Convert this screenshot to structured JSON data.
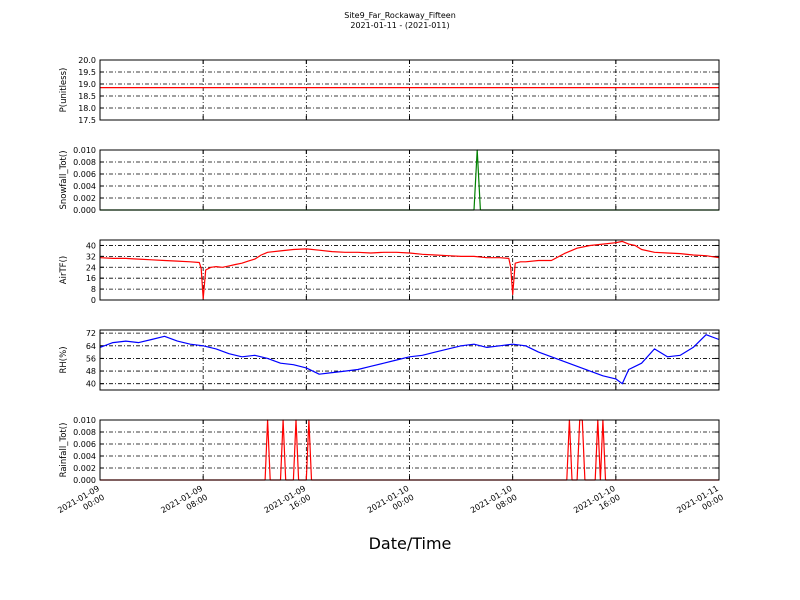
{
  "figure": {
    "title": "Site9_Far_Rockaway_Fifteen",
    "subtitle": "2021-01-11 - (2021-011)",
    "xlabel": "Date/Time"
  },
  "chart_data": [
    {
      "type": "line",
      "ylabel": "P(unitless)",
      "ylim": [
        17.5,
        20.0
      ],
      "yticks": [
        "17.5",
        "18.0",
        "18.5",
        "19.0",
        "19.5",
        "20.0"
      ],
      "color": "#ff0000",
      "grid": true,
      "series": [
        {
          "x": [
            0,
            48
          ],
          "values": [
            18.85,
            18.85
          ]
        }
      ]
    },
    {
      "type": "line",
      "ylabel": "Snowfall_Tot()",
      "ylim": [
        0,
        0.01
      ],
      "yticks": [
        "0.000",
        "0.002",
        "0.004",
        "0.006",
        "0.008",
        "0.010"
      ],
      "color": "#008000",
      "grid": true,
      "series": [
        {
          "x": [
            0,
            29.0,
            29.25,
            29.5,
            48
          ],
          "values": [
            0,
            0,
            0.01,
            0,
            0
          ]
        }
      ]
    },
    {
      "type": "line",
      "ylabel": "AirTF()",
      "ylim": [
        0,
        44
      ],
      "yticks": [
        "0",
        "8",
        "16",
        "24",
        "32",
        "40"
      ],
      "color": "#ff0000",
      "grid": true,
      "series": [
        {
          "x": [
            0,
            1,
            2,
            3,
            4,
            5,
            6,
            7,
            7.7,
            7.85,
            8.0,
            8.2,
            8.6,
            9,
            9.5,
            10,
            10.5,
            11,
            11.5,
            12,
            12.5,
            13,
            14,
            15,
            16,
            17,
            18,
            19,
            20,
            21,
            22,
            23,
            24,
            25,
            26,
            27,
            28,
            29,
            30,
            31,
            31.7,
            31.85,
            32.0,
            32.2,
            32.6,
            33,
            34,
            35,
            36,
            37,
            38,
            39,
            40,
            40.5,
            41,
            41.5,
            42,
            43,
            44,
            45,
            46,
            47,
            48
          ],
          "values": [
            31,
            30.5,
            30.5,
            30,
            29.5,
            29,
            28.5,
            28,
            27.5,
            23,
            1,
            22,
            24,
            24.5,
            24,
            25,
            26,
            27,
            28.5,
            30,
            33,
            35,
            36,
            37,
            37.5,
            36.5,
            35.5,
            35,
            35,
            34.5,
            35,
            35,
            34.5,
            33.5,
            33,
            32.5,
            32,
            32,
            31,
            31,
            30.5,
            24,
            4,
            27,
            28,
            28,
            29,
            29,
            34,
            38,
            40,
            41,
            42,
            43,
            41,
            40,
            37,
            35,
            34.5,
            34,
            33,
            32.5,
            31
          ]
        }
      ]
    },
    {
      "type": "line",
      "ylabel": "RH(%)",
      "ylim": [
        36,
        74
      ],
      "yticks": [
        "40",
        "48",
        "56",
        "64",
        "72"
      ],
      "color": "#0000ff",
      "grid": true,
      "series": [
        {
          "x": [
            0,
            1,
            2,
            3,
            4,
            5,
            6,
            7,
            8,
            9,
            10,
            11,
            12,
            13,
            14,
            15,
            16,
            17,
            18,
            19,
            20,
            21,
            22,
            23,
            24,
            25,
            26,
            27,
            28,
            29,
            30,
            31,
            32,
            33,
            34,
            35,
            36,
            37,
            38,
            39,
            40,
            40.5,
            41,
            42,
            43,
            44,
            45,
            46,
            47,
            48
          ],
          "values": [
            63,
            66,
            67,
            66,
            68,
            70,
            67,
            65,
            64,
            62,
            59,
            57,
            58,
            56,
            53,
            52,
            50,
            46,
            47,
            48,
            49,
            51,
            53,
            55,
            57,
            58,
            60,
            62,
            64,
            65,
            63,
            64,
            65,
            64,
            60,
            57,
            54,
            51,
            48,
            45,
            43,
            40,
            49,
            53,
            62,
            57,
            58,
            63,
            71,
            68
          ]
        }
      ]
    },
    {
      "type": "line",
      "ylabel": "Rainfall_Tot()",
      "ylim": [
        0,
        0.01
      ],
      "yticks": [
        "0.000",
        "0.002",
        "0.004",
        "0.006",
        "0.008",
        "0.010"
      ],
      "color": "#ff0000",
      "grid": true,
      "series": [
        {
          "x": [
            0,
            12.8,
            13.0,
            13.2,
            14.0,
            14.2,
            14.4,
            15.0,
            15.2,
            15.4,
            16.0,
            16.2,
            16.4,
            36.2,
            36.4,
            36.6,
            37.0,
            37.2,
            37.4,
            37.6,
            38.4,
            38.6,
            38.8,
            39.0,
            39.2,
            48
          ],
          "values": [
            0,
            0,
            0.01,
            0,
            0,
            0.01,
            0,
            0,
            0.01,
            0,
            0,
            0.01,
            0,
            0,
            0.01,
            0,
            0,
            0.01,
            0.01,
            0,
            0,
            0.01,
            0,
            0.01,
            0,
            0
          ]
        }
      ]
    }
  ],
  "x_axis": {
    "range_hours": [
      0,
      48
    ],
    "ticks": [
      {
        "hour": 0,
        "line1": "2021-01-09",
        "line2": "00:00"
      },
      {
        "hour": 8,
        "line1": "2021-01-09",
        "line2": "08:00"
      },
      {
        "hour": 16,
        "line1": "2021-01-09",
        "line2": "16:00"
      },
      {
        "hour": 24,
        "line1": "2021-01-10",
        "line2": "00:00"
      },
      {
        "hour": 32,
        "line1": "2021-01-10",
        "line2": "08:00"
      },
      {
        "hour": 40,
        "line1": "2021-01-10",
        "line2": "16:00"
      },
      {
        "hour": 48,
        "line1": "2021-01-11",
        "line2": "00:00"
      }
    ]
  }
}
